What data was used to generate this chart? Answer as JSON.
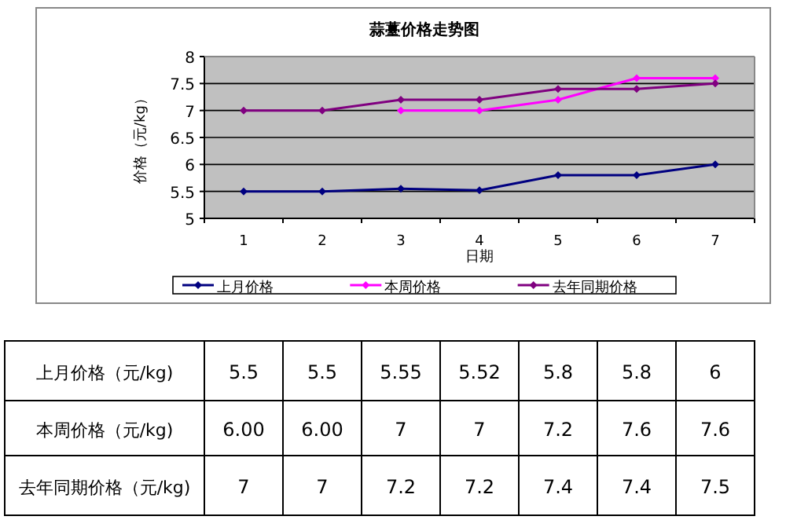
{
  "chart_data": {
    "type": "line",
    "title": "蒜薹价格走势图",
    "xlabel": "日期",
    "ylabel": "价格（元/kg）",
    "categories": [
      "1",
      "2",
      "3",
      "4",
      "5",
      "6",
      "7"
    ],
    "ylim": [
      5,
      8
    ],
    "yticks": [
      5,
      5.5,
      6,
      6.5,
      7,
      7.5,
      8
    ],
    "grid": "y",
    "legend": "bottom",
    "marker": "diamond",
    "line_style": "solid",
    "series": [
      {
        "name": "上月价格",
        "color": "#000080",
        "values": [
          5.5,
          5.5,
          5.55,
          5.52,
          5.8,
          5.8,
          6
        ],
        "value_labels": [
          "5.5",
          "5.5",
          "5.55",
          "5.52",
          "5.8",
          "5.8",
          "6"
        ]
      },
      {
        "name": "本周价格",
        "color": "#ff00ff",
        "values": [
          null,
          null,
          7,
          7,
          7.2,
          7.6,
          7.6
        ],
        "value_labels": [
          "6.00",
          "6.00",
          "7",
          "7",
          "7.2",
          "7.6",
          "7.6"
        ]
      },
      {
        "name": "去年同期价格",
        "color": "#800080",
        "values": [
          7,
          7,
          7.2,
          7.2,
          7.4,
          7.4,
          7.5
        ],
        "value_labels": [
          "7",
          "7",
          "7.2",
          "7.2",
          "7.4",
          "7.4",
          "7.5"
        ]
      }
    ],
    "annotations": [
      "上月价格（元/kg)",
      "本周价格（元/kg)",
      "去年同期价格（元/kg)"
    ]
  }
}
